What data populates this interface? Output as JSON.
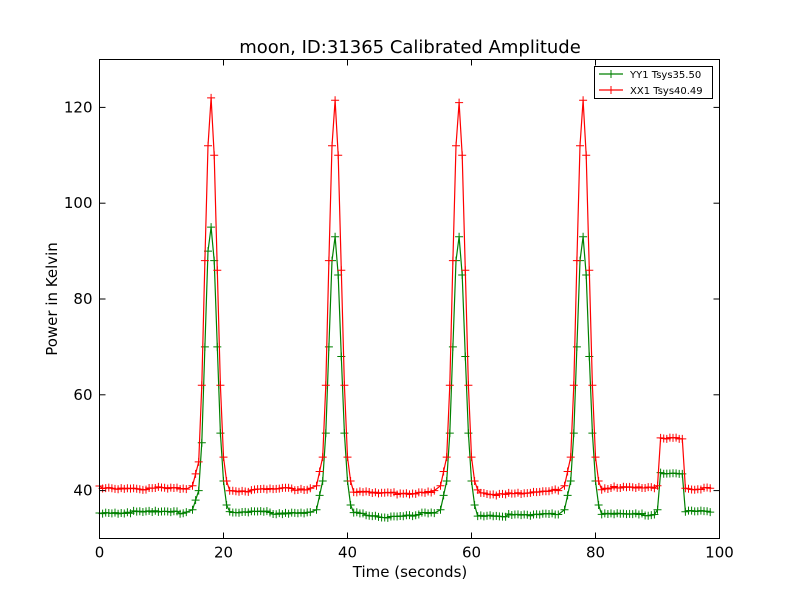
{
  "chart_data": {
    "type": "line",
    "title": "moon, ID:31365 Calibrated Amplitude",
    "xlabel": "Time (seconds)",
    "ylabel": "Power in Kelvin",
    "xlim": [
      0,
      100
    ],
    "ylim": [
      30,
      130
    ],
    "xticks": [
      0,
      20,
      40,
      60,
      80,
      100
    ],
    "yticks": [
      40,
      60,
      80,
      100,
      120
    ],
    "grid": false,
    "legend_position": "top-right",
    "marker": "+",
    "sample_step_seconds": 0.5,
    "x_range": [
      0,
      98.5
    ],
    "series": [
      {
        "name": "YY1 Tsys35.50",
        "color": "#008000",
        "segments": [
          {
            "x": [
              0,
              14
            ],
            "y": [
              35.5,
              35.5
            ]
          },
          {
            "x": [
              15,
              16,
              16.5,
              17,
              17.5,
              18,
              18.5,
              19,
              19.5,
              20,
              20.5,
              21
            ],
            "y": [
              36,
              40,
              50,
              70,
              90,
              95,
              88,
              70,
              52,
              42,
              37,
              35.5
            ]
          },
          {
            "x": [
              21,
              34
            ],
            "y": [
              35.3,
              35.5
            ]
          },
          {
            "x": [
              35,
              36,
              36.5,
              37,
              37.5,
              38,
              38.5,
              39,
              39.5,
              40,
              40.5,
              41
            ],
            "y": [
              36,
              42,
              52,
              70,
              88,
              93,
              85,
              68,
              52,
              42,
              37,
              35.5
            ]
          },
          {
            "x": [
              41,
              46,
              54
            ],
            "y": [
              35.3,
              34.6,
              35.3
            ]
          },
          {
            "x": [
              55,
              56,
              56.5,
              57,
              57.5,
              58,
              58.5,
              59,
              59.5,
              60,
              60.5,
              61
            ],
            "y": [
              36,
              42,
              52,
              70,
              88,
              93,
              85,
              68,
              52,
              42,
              37,
              35.2
            ]
          },
          {
            "x": [
              61,
              70,
              74
            ],
            "y": [
              35,
              34.7,
              35
            ]
          },
          {
            "x": [
              75,
              76,
              76.5,
              77,
              77.5,
              78,
              78.5,
              79,
              79.5,
              80,
              80.5,
              81
            ],
            "y": [
              36,
              42,
              52,
              70,
              88,
              93,
              85,
              68,
              52,
              42,
              37,
              35.2
            ]
          },
          {
            "x": [
              81,
              89.5
            ],
            "y": [
              35,
              35
            ]
          },
          {
            "x": [
              90,
              90.5
            ],
            "y": [
              36,
              43.5
            ]
          },
          {
            "x": [
              90.5,
              93.5
            ],
            "y": [
              43.5,
              43.5
            ]
          },
          {
            "x": [
              94,
              94.5
            ],
            "y": [
              43.5,
              35.5
            ]
          },
          {
            "x": [
              94.5,
              98.5
            ],
            "y": [
              35.5,
              35.5
            ]
          }
        ]
      },
      {
        "name": "XX1 Tsys40.49",
        "color": "#ff0000",
        "segments": [
          {
            "x": [
              0,
              14
            ],
            "y": [
              40.7,
              40.3
            ]
          },
          {
            "x": [
              15,
              16,
              16.5,
              17,
              17.5,
              18,
              18.5,
              19,
              19.5,
              20,
              20.5,
              21
            ],
            "y": [
              41,
              46,
              62,
              88,
              112,
              122,
              110,
              86,
              62,
              47,
              42,
              40.5
            ]
          },
          {
            "x": [
              21,
              23,
              28,
              34
            ],
            "y": [
              40.2,
              40,
              40.2,
              40.5
            ]
          },
          {
            "x": [
              35,
              36,
              36.5,
              37,
              37.5,
              38,
              38.5,
              39,
              39.5,
              40,
              40.5,
              41
            ],
            "y": [
              41,
              47,
              62,
              88,
              112,
              121.5,
              110,
              86,
              62,
              47,
              42,
              40
            ]
          },
          {
            "x": [
              41,
              45,
              50,
              54
            ],
            "y": [
              39.6,
              39.4,
              39.5,
              40
            ]
          },
          {
            "x": [
              55,
              56,
              56.5,
              57,
              57.5,
              58,
              58.5,
              59,
              59.5,
              60,
              60.5,
              61
            ],
            "y": [
              41,
              47,
              62,
              88,
              112,
              121,
              110,
              86,
              62,
              47,
              42,
              40.5
            ]
          },
          {
            "x": [
              61,
              63.5,
              65,
              70,
              74
            ],
            "y": [
              40,
              39,
              39.5,
              39.6,
              40
            ]
          },
          {
            "x": [
              75,
              76,
              76.5,
              77,
              77.5,
              78,
              78.5,
              79,
              79.5,
              80,
              80.5,
              81
            ],
            "y": [
              41,
              47,
              62,
              88,
              112,
              121.5,
              110,
              86,
              62,
              47,
              42,
              40.5
            ]
          },
          {
            "x": [
              81,
              89.5
            ],
            "y": [
              40.5,
              40.5
            ]
          },
          {
            "x": [
              90,
              90.5
            ],
            "y": [
              41,
              50.8
            ]
          },
          {
            "x": [
              90.5,
              93.5
            ],
            "y": [
              50.8,
              50.8
            ]
          },
          {
            "x": [
              94,
              94.5
            ],
            "y": [
              50.8,
              40.5
            ]
          },
          {
            "x": [
              94.5,
              98.5
            ],
            "y": [
              40.5,
              40.5
            ]
          }
        ]
      }
    ]
  }
}
